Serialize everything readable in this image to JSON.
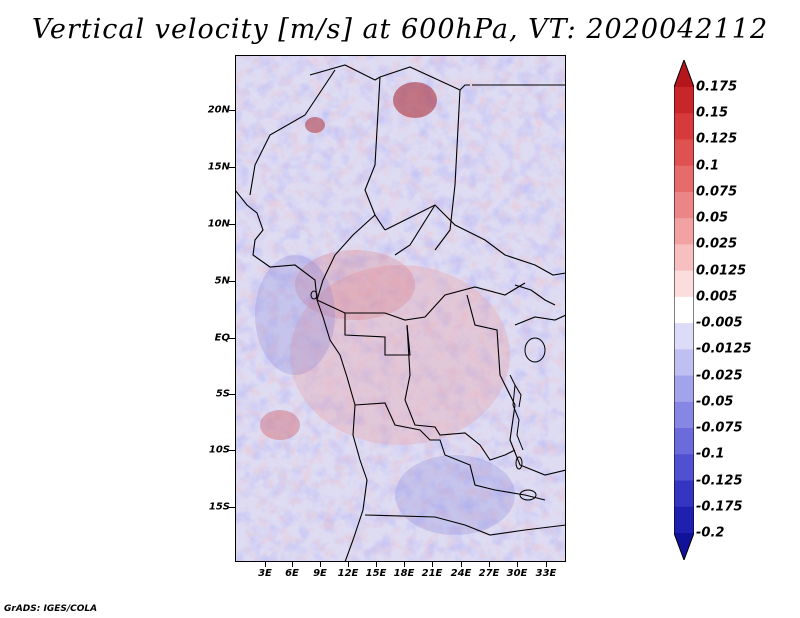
{
  "title": "Vertical velocity [m/s] at 600hPa, VT: 2020042112",
  "footer": "GrADS: IGES/COLA",
  "map": {
    "variable": "Vertical velocity",
    "units": "m/s",
    "level": "600hPa",
    "valid_time": "2020042112",
    "lat_labels": [
      "20N",
      "15N",
      "10N",
      "5N",
      "EQ",
      "5S",
      "10S",
      "15S"
    ],
    "lon_labels": [
      "3E",
      "6E",
      "9E",
      "12E",
      "15E",
      "18E",
      "21E",
      "24E",
      "27E",
      "30E",
      "33E"
    ]
  },
  "colorbar": {
    "labels": [
      "0.175",
      "0.15",
      "0.125",
      "0.1",
      "0.075",
      "0.05",
      "0.025",
      "0.0125",
      "0.005",
      "-0.005",
      "-0.0125",
      "-0.025",
      "-0.05",
      "-0.075",
      "-0.1",
      "-0.125",
      "-0.175",
      "-0.2"
    ],
    "colors": [
      "#b4161c",
      "#c8262b",
      "#d63a3c",
      "#e05252",
      "#e66b6b",
      "#ec8686",
      "#f2a2a2",
      "#f7c0c0",
      "#fbdddd",
      "#ffffff",
      "#dcdcf8",
      "#bfbff2",
      "#a3a3ec",
      "#8686e4",
      "#6b6bdb",
      "#5050d0",
      "#3535c2",
      "#2020b0",
      "#11119a"
    ]
  }
}
